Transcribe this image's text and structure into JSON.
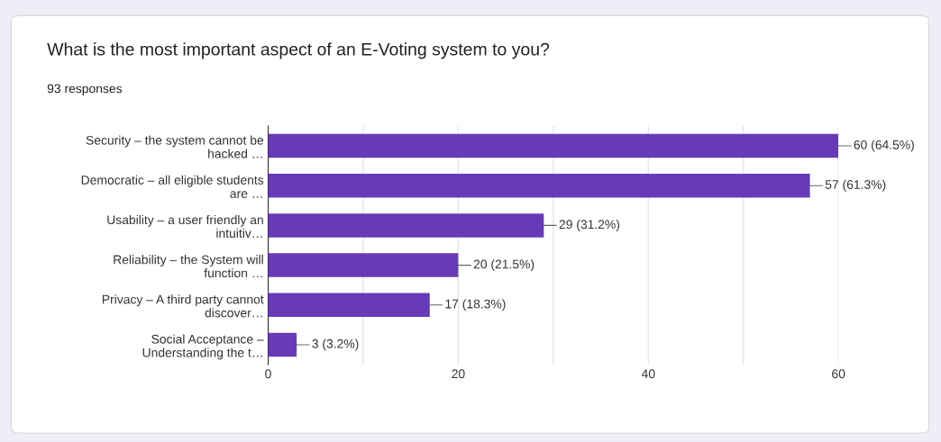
{
  "chart_data": {
    "type": "bar",
    "orientation": "horizontal",
    "title": "What is the most important aspect of an E-Voting system to you?",
    "subtitle": "93 responses",
    "categories": [
      "Security – the system cannot be\nhacked …",
      "Democratic – all eligible students\nare …",
      "Usability – a user friendly an\nintuitiv…",
      "Reliability – the System will\nfunction …",
      "Privacy – A third party cannot\ndiscover…",
      "Social Acceptance –\nUnderstanding the t…"
    ],
    "values": [
      60,
      57,
      29,
      20,
      17,
      3
    ],
    "value_labels": [
      "60 (64.5%)",
      "57 (61.3%)",
      "29 (31.2%)",
      "20 (21.5%)",
      "17 (18.3%)",
      "3 (3.2%)"
    ],
    "color": "#673ab7",
    "xlim": [
      0,
      60
    ],
    "xticks": [
      0,
      {
        "value": 10,
        "label": null
      },
      20,
      {
        "value": 30,
        "label": null
      },
      40,
      {
        "value": 50,
        "label": null
      },
      60
    ],
    "grid": "x",
    "legend": false
  }
}
